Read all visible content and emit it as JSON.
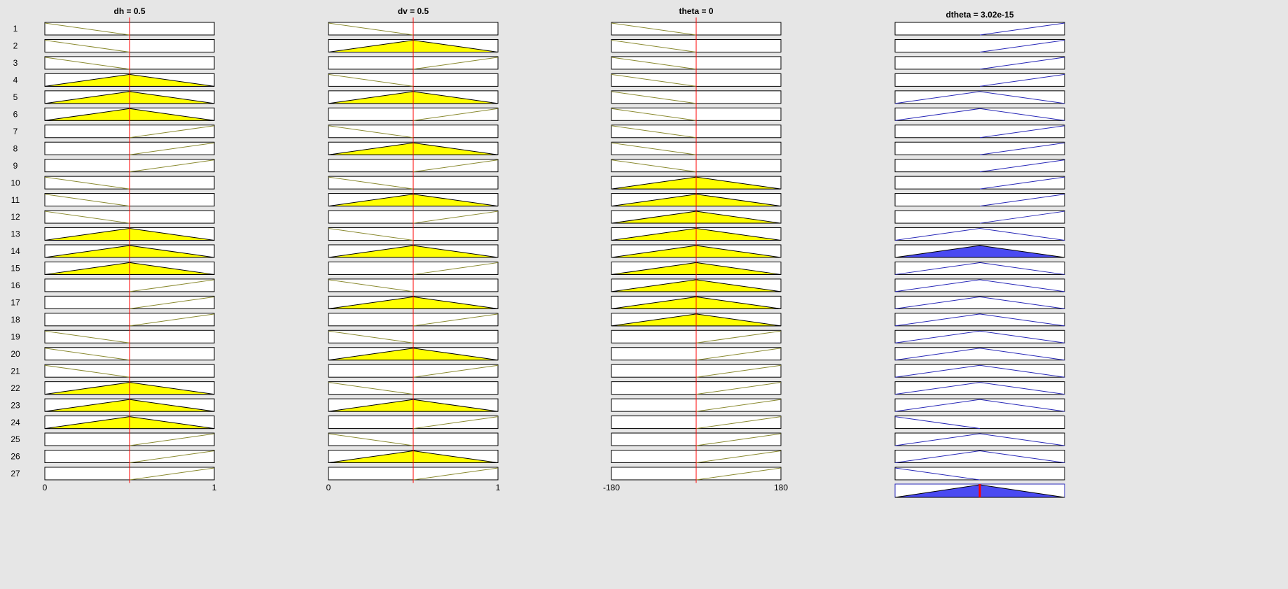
{
  "rows": [
    1,
    2,
    3,
    4,
    5,
    6,
    7,
    8,
    9,
    10,
    11,
    12,
    13,
    14,
    15,
    16,
    17,
    18,
    19,
    20,
    21,
    22,
    23,
    24,
    25,
    26,
    27
  ],
  "columns": [
    {
      "title": "dh = 0.5",
      "value": 0.5,
      "xlim": [
        0,
        1
      ],
      "xticks": [
        0,
        1
      ],
      "line_color": "#8a8a30",
      "fill_color": "#ffff00",
      "shapes": [
        "left",
        "left",
        "left",
        "center",
        "center",
        "center",
        "right",
        "right",
        "right",
        "left",
        "left",
        "left",
        "center",
        "center",
        "center",
        "right",
        "right",
        "right",
        "left",
        "left",
        "left",
        "center",
        "center",
        "center",
        "right",
        "right",
        "right"
      ],
      "filled_rows": [
        4,
        5,
        6,
        13,
        14,
        15,
        22,
        23,
        24
      ]
    },
    {
      "title": "dv = 0.5",
      "value": 0.5,
      "xlim": [
        0,
        1
      ],
      "xticks": [
        0,
        1
      ],
      "line_color": "#8a8a30",
      "fill_color": "#ffff00",
      "shapes": [
        "left",
        "center",
        "right",
        "left",
        "center",
        "right",
        "left",
        "center",
        "right",
        "left",
        "center",
        "right",
        "left",
        "center",
        "right",
        "left",
        "center",
        "right",
        "left",
        "center",
        "right",
        "left",
        "center",
        "right",
        "left",
        "center",
        "right"
      ],
      "filled_rows": [
        2,
        5,
        8,
        11,
        14,
        17,
        20,
        23,
        26
      ]
    },
    {
      "title": "theta = 0",
      "value": 0,
      "xlim": [
        -180,
        180
      ],
      "xticks": [
        -180,
        180
      ],
      "line_color": "#8a8a30",
      "fill_color": "#ffff00",
      "shapes": [
        "left",
        "left",
        "left",
        "left",
        "left",
        "left",
        "left",
        "left",
        "left",
        "center",
        "center",
        "center",
        "center",
        "center",
        "center",
        "center",
        "center",
        "center",
        "right",
        "right",
        "right",
        "right",
        "right",
        "right",
        "right",
        "right",
        "right"
      ],
      "filled_rows": [
        10,
        11,
        12,
        13,
        14,
        15,
        16,
        17,
        18
      ]
    },
    {
      "title": "dtheta = 3.02e-15",
      "line_color": "#2828b8",
      "fill_color": "#4a4af2",
      "aggregate": true,
      "shapes": [
        "right",
        "right",
        "right",
        "right",
        "center",
        "center",
        "right",
        "right",
        "right",
        "right",
        "right",
        "right",
        "center",
        "center",
        "center",
        "center",
        "center",
        "center",
        "center",
        "center",
        "center",
        "center",
        "center",
        "left",
        "center",
        "center",
        "left"
      ],
      "filled_rows": [
        14
      ]
    }
  ]
}
